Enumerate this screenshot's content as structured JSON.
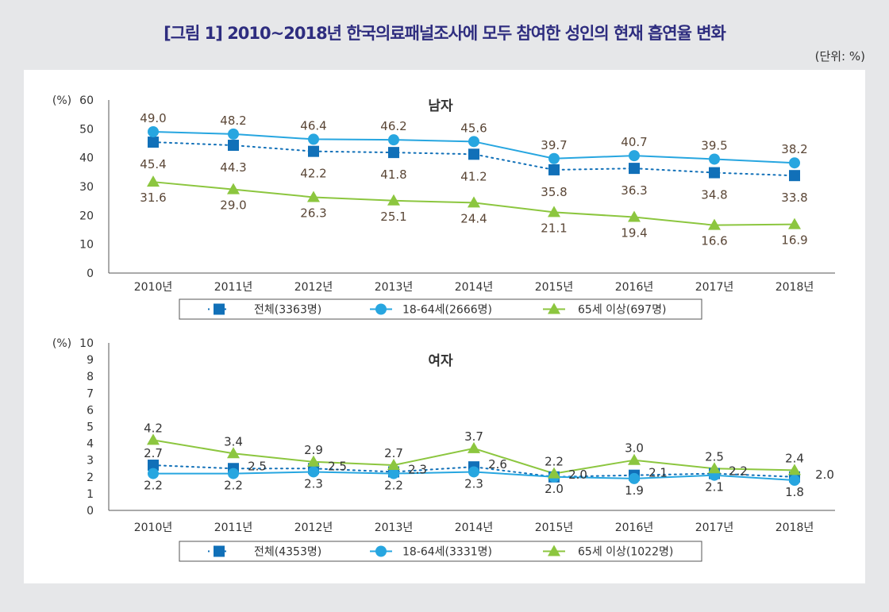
{
  "title": "[그림 1] 2010~2018년 한국의료패널조사에 모두 참여한 성인의 현재 흡연율 변화",
  "unit": "(단위: %)",
  "colors": {
    "total": "#1170b8",
    "age18_64": "#27a6e0",
    "age65": "#8cc63f",
    "title": "#2e2d7f"
  },
  "chart_data": [
    {
      "type": "line",
      "title": "남자",
      "ylabel": "(%)",
      "ylim": [
        0,
        60
      ],
      "yticks": [
        0,
        10,
        20,
        30,
        40,
        50,
        60
      ],
      "categories": [
        "2010년",
        "2011년",
        "2012년",
        "2013년",
        "2014년",
        "2015년",
        "2016년",
        "2017년",
        "2018년"
      ],
      "legend_placement": "bottom",
      "series": [
        {
          "name": "전체(3363명)",
          "marker": "square",
          "style": "dotted",
          "values": [
            45.4,
            44.3,
            42.2,
            41.8,
            41.2,
            35.8,
            36.3,
            34.8,
            33.8
          ]
        },
        {
          "name": "18-64세(2666명)",
          "marker": "circle",
          "style": "solid",
          "values": [
            49.0,
            48.2,
            46.4,
            46.2,
            45.6,
            39.7,
            40.7,
            39.5,
            38.2
          ]
        },
        {
          "name": "65세 이상(697명)",
          "marker": "triangle",
          "style": "solid",
          "values": [
            31.6,
            29.0,
            26.3,
            25.1,
            24.4,
            21.1,
            19.4,
            16.6,
            16.9
          ]
        }
      ]
    },
    {
      "type": "line",
      "title": "여자",
      "ylabel": "(%)",
      "ylim": [
        0,
        10
      ],
      "yticks": [
        0,
        1,
        2,
        3,
        4,
        5,
        6,
        7,
        8,
        9,
        10
      ],
      "categories": [
        "2010년",
        "2011년",
        "2012년",
        "2013년",
        "2014년",
        "2015년",
        "2016년",
        "2017년",
        "2018년"
      ],
      "legend_placement": "bottom",
      "series": [
        {
          "name": "전체(4353명)",
          "marker": "square",
          "style": "dotted",
          "values": [
            2.7,
            2.5,
            2.5,
            2.3,
            2.6,
            2.0,
            2.1,
            2.2,
            2.0
          ]
        },
        {
          "name": "18-64세(3331명)",
          "marker": "circle",
          "style": "solid",
          "values": [
            2.2,
            2.2,
            2.3,
            2.2,
            2.3,
            2.0,
            1.9,
            2.1,
            1.8
          ]
        },
        {
          "name": "65세 이상(1022명)",
          "marker": "triangle",
          "style": "solid",
          "values": [
            4.2,
            3.4,
            2.9,
            2.7,
            3.7,
            2.2,
            3.0,
            2.5,
            2.4
          ]
        }
      ]
    }
  ]
}
